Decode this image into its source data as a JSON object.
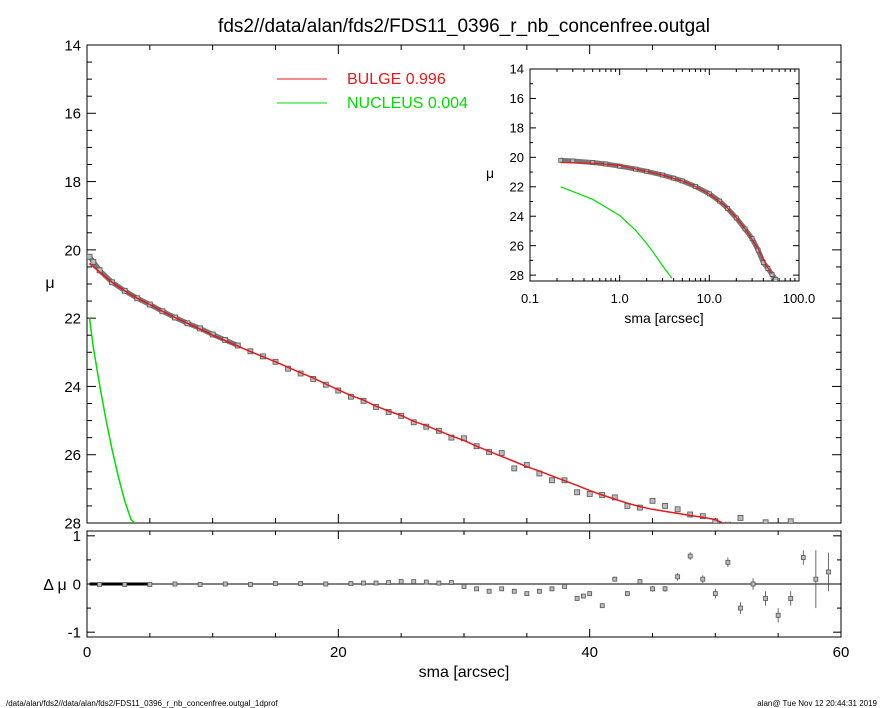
{
  "title": "fds2//data/alan/fds2/FDS11_0396_r_nb_concenfree.outgal",
  "footer_left": "/data/alan/fds2//data/alan/fds2/FDS11_0396_r_nb_concenfree.outgal_1dprof",
  "footer_right": "alan@  Tue Nov 12 20:44:31 2019",
  "colors": {
    "bulge": "#e8191c",
    "nucleus": "#00dd00",
    "data": "#555555"
  },
  "chart_data": [
    {
      "type": "line",
      "panel": "main",
      "xlabel": "sma [arcsec]",
      "ylabel": "μ",
      "xlim": [
        0,
        60
      ],
      "ylim": [
        28,
        14
      ],
      "x_ticks": [
        0,
        20,
        40,
        60
      ],
      "y_ticks": [
        14,
        16,
        18,
        20,
        22,
        24,
        26,
        28
      ],
      "legend": [
        {
          "label": "BULGE",
          "value": "0.996",
          "color": "#e8191c"
        },
        {
          "label": "NUCLEUS",
          "value": "0.004",
          "color": "#00dd00"
        }
      ],
      "series": [
        {
          "name": "BULGE",
          "x": [
            0.2,
            1,
            2,
            3,
            4,
            5,
            6,
            7,
            8,
            9,
            10,
            11,
            12,
            13,
            14,
            15,
            16,
            17,
            18,
            19,
            20,
            21,
            22,
            23,
            24,
            25,
            26,
            27,
            28,
            29,
            30,
            31,
            32,
            33,
            34,
            35,
            36,
            37,
            38,
            39,
            40,
            41,
            42,
            43,
            44,
            45,
            46,
            47,
            48,
            49,
            50,
            50.6
          ],
          "y": [
            20.4,
            20.65,
            20.95,
            21.2,
            21.42,
            21.6,
            21.8,
            21.98,
            22.15,
            22.32,
            22.5,
            22.66,
            22.82,
            22.98,
            23.13,
            23.28,
            23.44,
            23.6,
            23.75,
            23.93,
            24.1,
            24.27,
            24.4,
            24.58,
            24.72,
            24.85,
            25.02,
            25.15,
            25.3,
            25.45,
            25.58,
            25.75,
            25.9,
            26.05,
            26.2,
            26.35,
            26.48,
            26.62,
            26.76,
            26.9,
            27.05,
            27.18,
            27.3,
            27.42,
            27.52,
            27.6,
            27.66,
            27.72,
            27.78,
            27.83,
            27.9,
            28.0
          ]
        },
        {
          "name": "NUCLEUS",
          "x": [
            0.2,
            0.5,
            1,
            1.5,
            2,
            2.5,
            3,
            3.5,
            3.8
          ],
          "y": [
            22.0,
            22.85,
            23.95,
            24.95,
            25.85,
            26.65,
            27.35,
            27.9,
            28.0
          ]
        },
        {
          "name": "data",
          "x": [
            0.2,
            0.5,
            1,
            2,
            3,
            4,
            5,
            6,
            7,
            8,
            9,
            10,
            11,
            12,
            13,
            14,
            15,
            16,
            17,
            18,
            19,
            20,
            21,
            22,
            23,
            24,
            25,
            26,
            27,
            28,
            29,
            30,
            31,
            32,
            33,
            34,
            35,
            36,
            37,
            38,
            39,
            40,
            41,
            42,
            43,
            44,
            45,
            46,
            47,
            48,
            49,
            50,
            51,
            52,
            53,
            54,
            55,
            56
          ],
          "y": [
            20.2,
            20.35,
            20.6,
            20.95,
            21.2,
            21.42,
            21.6,
            21.8,
            21.98,
            22.15,
            22.3,
            22.48,
            22.64,
            22.8,
            22.97,
            23.12,
            23.28,
            23.48,
            23.62,
            23.78,
            23.95,
            24.12,
            24.3,
            24.42,
            24.6,
            24.75,
            24.86,
            25.05,
            25.18,
            25.3,
            25.5,
            25.52,
            25.75,
            25.92,
            25.95,
            26.4,
            26.3,
            26.55,
            26.75,
            26.75,
            27.1,
            27.15,
            27.18,
            27.25,
            27.5,
            27.55,
            27.35,
            27.5,
            27.6,
            27.75,
            27.8,
            27.95,
            28.05,
            27.85,
            28.1,
            27.98,
            28.4,
            27.95
          ]
        }
      ]
    },
    {
      "type": "scatter",
      "panel": "residual",
      "xlabel": "sma [arcsec]",
      "ylabel": "Δ μ",
      "xlim": [
        0,
        60
      ],
      "ylim": [
        -1.1,
        1.1
      ],
      "x_ticks": [
        0,
        20,
        40,
        60
      ],
      "y_ticks": [
        -1,
        0,
        1
      ],
      "series": [
        {
          "x": [
            1,
            3,
            5,
            7,
            9,
            11,
            13,
            15,
            17,
            19,
            21,
            22,
            23,
            24,
            25,
            26,
            27,
            28,
            29,
            30,
            31,
            32,
            33,
            34,
            35,
            36,
            37,
            38,
            39,
            39.5,
            40,
            41,
            42,
            43,
            44,
            45,
            46,
            47,
            48,
            49,
            50,
            51,
            52,
            53,
            54,
            55,
            56,
            57,
            58,
            59
          ],
          "y": [
            -0.01,
            -0.01,
            -0.01,
            0,
            -0.01,
            0,
            -0.01,
            0.01,
            0.01,
            0,
            0.01,
            0.02,
            0.02,
            0.03,
            0.05,
            0.05,
            0.04,
            0.02,
            0.03,
            -0.05,
            -0.1,
            -0.15,
            -0.1,
            -0.15,
            -0.2,
            -0.15,
            -0.1,
            -0.05,
            -0.3,
            -0.25,
            -0.2,
            -0.45,
            0.1,
            -0.2,
            0.05,
            -0.1,
            -0.1,
            0.15,
            0.58,
            0.1,
            -0.2,
            0.45,
            -0.5,
            0,
            -0.3,
            -0.65,
            -0.3,
            0.55,
            0.1,
            0.25
          ],
          "err": [
            0.01,
            0.01,
            0.01,
            0.01,
            0.01,
            0.01,
            0.01,
            0.01,
            0.01,
            0.01,
            0.01,
            0.01,
            0.01,
            0.01,
            0.01,
            0.01,
            0.01,
            0.01,
            0.01,
            0.02,
            0.02,
            0.02,
            0.02,
            0.02,
            0.02,
            0.02,
            0.02,
            0.02,
            0.03,
            0.03,
            0.03,
            0.03,
            0.05,
            0.05,
            0.05,
            0.06,
            0.06,
            0.08,
            0.08,
            0.08,
            0.1,
            0.1,
            0.12,
            0.12,
            0.15,
            0.15,
            0.15,
            0.15,
            0.6,
            0.4
          ]
        }
      ]
    },
    {
      "type": "line",
      "panel": "inset",
      "xlabel": "sma [arcsec]",
      "ylabel": "μ",
      "xscale": "log",
      "xlim": [
        0.1,
        100
      ],
      "ylim": [
        28.4,
        14
      ],
      "x_ticks": [
        0.1,
        1,
        10,
        100
      ],
      "x_tick_labels": [
        "0.1",
        "1.0",
        "10.0",
        "100.0"
      ],
      "y_ticks": [
        14,
        16,
        18,
        20,
        22,
        24,
        26,
        28
      ],
      "series": [
        {
          "name": "BULGE",
          "x": [
            0.22,
            0.5,
            1,
            2,
            3,
            5,
            7,
            10,
            15,
            20,
            25,
            30,
            35,
            40,
            45,
            50
          ],
          "y": [
            20.35,
            20.4,
            20.55,
            20.95,
            21.2,
            21.6,
            21.98,
            22.5,
            23.28,
            24.1,
            24.85,
            25.58,
            26.2,
            26.9,
            27.52,
            27.9
          ]
        },
        {
          "name": "NUCLEUS",
          "x": [
            0.22,
            0.5,
            1,
            1.5,
            2,
            2.5,
            3,
            3.5,
            3.8
          ],
          "y": [
            22.0,
            22.85,
            23.95,
            24.95,
            25.85,
            26.65,
            27.35,
            27.9,
            28.2
          ]
        },
        {
          "name": "data",
          "x": [
            0.22,
            0.3,
            0.5,
            0.7,
            1,
            1.5,
            2,
            3,
            4,
            5,
            7,
            10,
            13,
            16,
            20,
            25,
            30,
            35,
            40,
            45,
            50,
            55
          ],
          "y": [
            20.2,
            20.25,
            20.35,
            20.45,
            20.6,
            20.8,
            20.95,
            21.2,
            21.42,
            21.6,
            21.98,
            22.48,
            22.97,
            23.48,
            24.12,
            24.86,
            25.52,
            26.3,
            27.15,
            27.55,
            27.95,
            28.3
          ]
        }
      ]
    }
  ]
}
